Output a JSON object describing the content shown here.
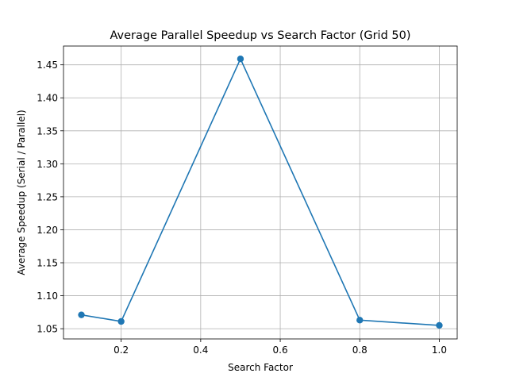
{
  "chart_data": {
    "type": "line",
    "title": "Average Parallel Speedup vs Search Factor (Grid 50)",
    "xlabel": "Search Factor",
    "ylabel": "Average Speedup (Serial / Parallel)",
    "grid": true,
    "xlim": [
      0.055,
      1.045
    ],
    "ylim": [
      1.0345,
      1.4785
    ],
    "xticks": [
      0.2,
      0.4,
      0.6,
      0.8,
      1.0
    ],
    "xtick_labels": [
      "0.2",
      "0.4",
      "0.6",
      "0.8",
      "1.0"
    ],
    "yticks": [
      1.05,
      1.1,
      1.15,
      1.2,
      1.25,
      1.3,
      1.35,
      1.4,
      1.45
    ],
    "ytick_labels": [
      "1.05",
      "1.10",
      "1.15",
      "1.20",
      "1.25",
      "1.30",
      "1.35",
      "1.40",
      "1.45"
    ],
    "series": [
      {
        "name": "Average Speedup",
        "color": "#1f77b4",
        "marker": "circle",
        "x": [
          0.1,
          0.2,
          0.5,
          0.8,
          1.0
        ],
        "y": [
          1.071,
          1.061,
          1.459,
          1.063,
          1.055
        ]
      }
    ]
  }
}
